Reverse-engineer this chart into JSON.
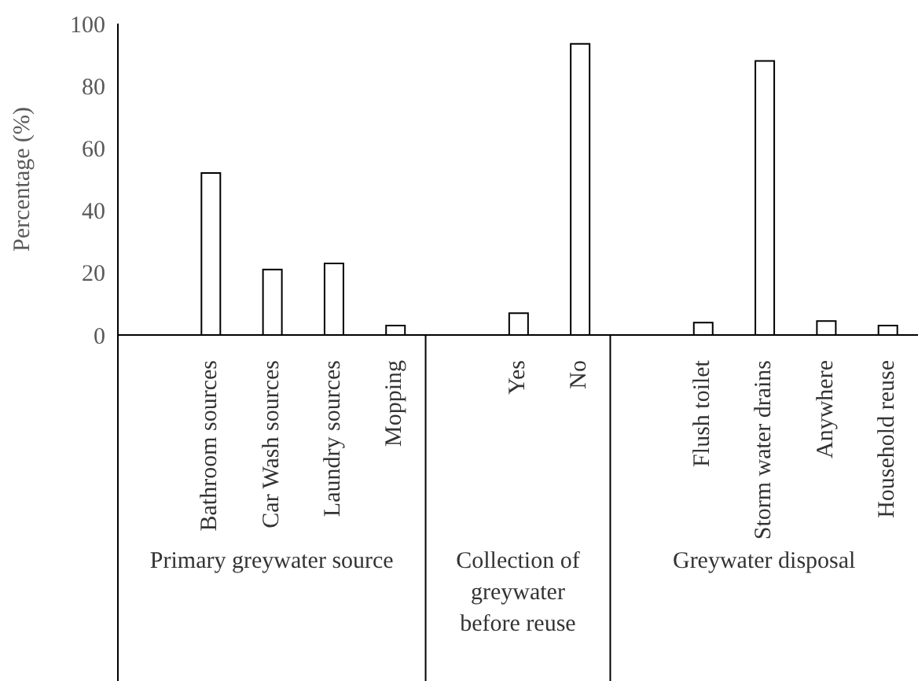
{
  "chart_data": {
    "type": "bar",
    "ylabel": "Percentage (%)",
    "categories": [
      null,
      "Bathroom sources",
      "Car Wash sources",
      "Laundry sources",
      "Mopping",
      null,
      "Yes",
      "No",
      null,
      "Flush toilet",
      "Storm water drains",
      "Anywhere",
      "Household reuse"
    ],
    "values": [
      null,
      52,
      21,
      23,
      3,
      null,
      7,
      93.5,
      null,
      4,
      88,
      4.5,
      3
    ],
    "color": "#ffffff",
    "ylim": [
      0,
      100
    ],
    "yticks": [
      0,
      20,
      40,
      60,
      80,
      100
    ],
    "annotations": [
      "Primary greywater source",
      "Collection of greywater before reuse",
      "Greywater disposal"
    ]
  }
}
